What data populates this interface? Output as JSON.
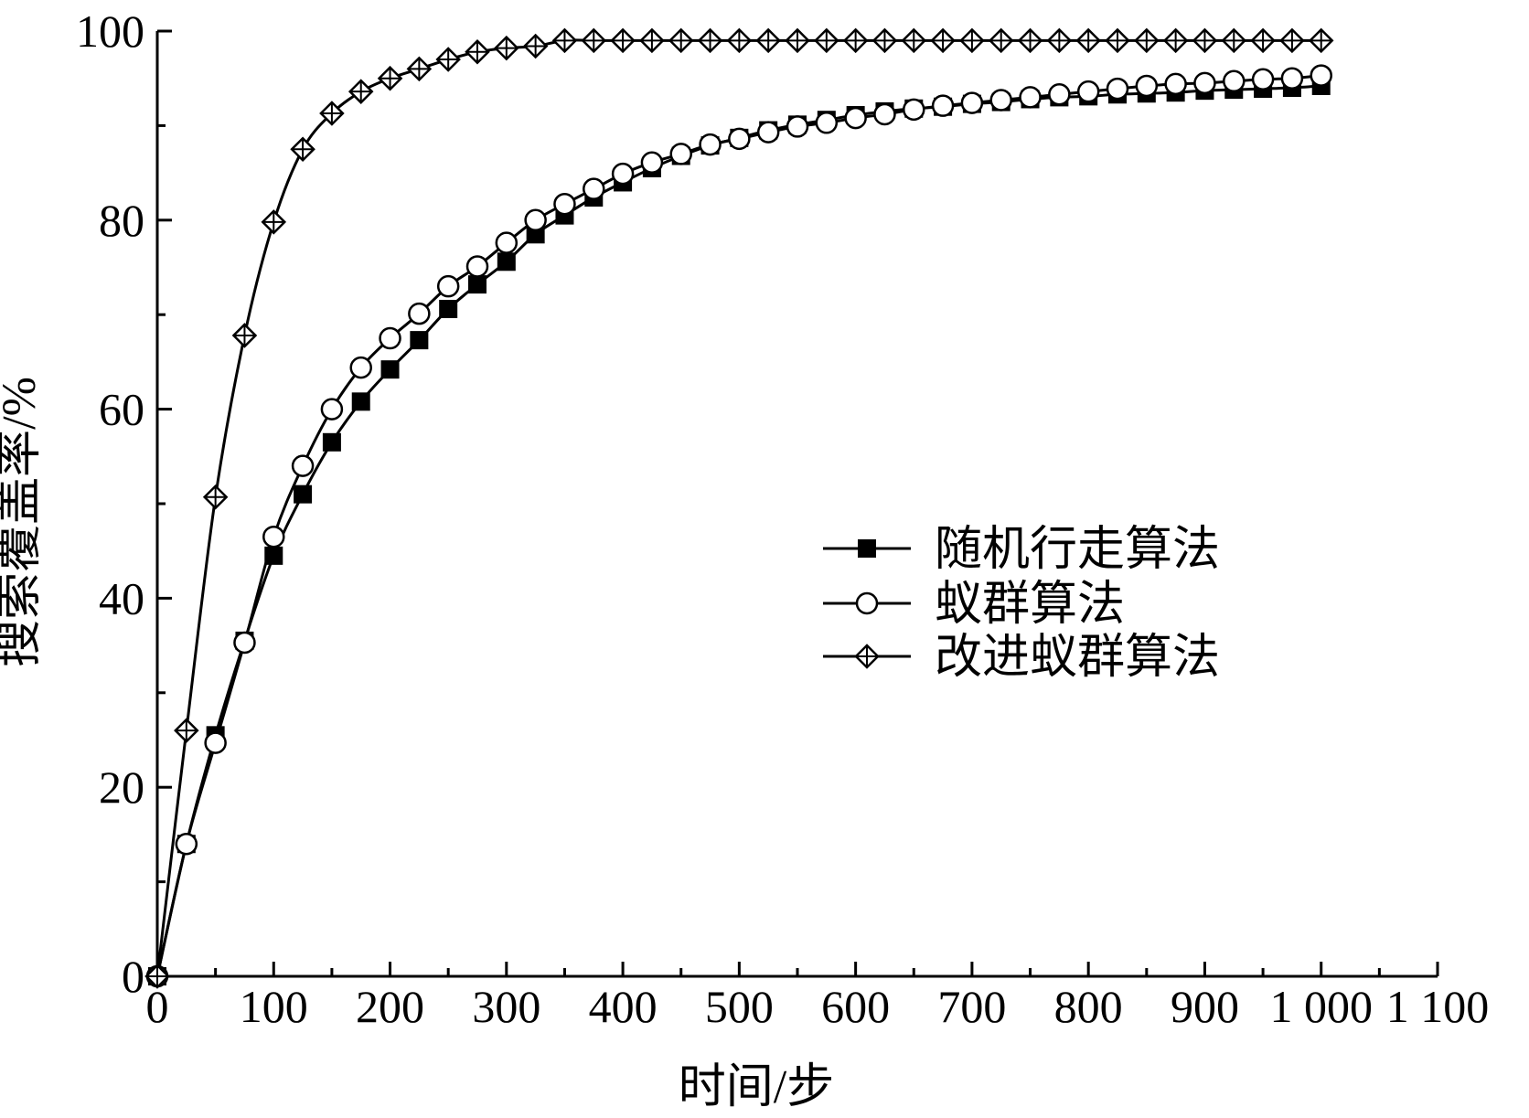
{
  "chart_data": {
    "type": "line",
    "title": "",
    "xlabel": "时间/步",
    "ylabel": "搜索覆盖率/%",
    "xlim": [
      0,
      1100
    ],
    "ylim": [
      0,
      100
    ],
    "xticks": [
      0,
      100,
      200,
      300,
      400,
      500,
      600,
      700,
      800,
      900,
      1000,
      1100
    ],
    "xtick_labels": [
      "0",
      "100",
      "200",
      "300",
      "400",
      "500",
      "600",
      "700",
      "800",
      "900",
      "1 000",
      "1 100"
    ],
    "yticks": [
      0,
      20,
      40,
      60,
      80,
      100
    ],
    "ytick_labels": [
      "0",
      "20",
      "40",
      "60",
      "80",
      "100"
    ],
    "grid": false,
    "legend_position": "center-right",
    "x": [
      0,
      25,
      50,
      75,
      100,
      125,
      150,
      175,
      200,
      225,
      250,
      275,
      300,
      325,
      350,
      375,
      400,
      425,
      450,
      475,
      500,
      525,
      550,
      575,
      600,
      625,
      650,
      675,
      700,
      725,
      750,
      775,
      800,
      825,
      850,
      875,
      900,
      925,
      950,
      975,
      1000
    ],
    "series": [
      {
        "name": "随机行走算法",
        "marker": "filled-square",
        "color": "#000000",
        "values": [
          0,
          14,
          25.5,
          35.5,
          44.5,
          51,
          56.5,
          60.8,
          64.2,
          67.3,
          70.6,
          73.2,
          75.6,
          78.5,
          80.5,
          82.4,
          84,
          85.5,
          86.8,
          87.9,
          88.7,
          89.5,
          90.1,
          90.6,
          91.1,
          91.5,
          91.8,
          92,
          92.3,
          92.5,
          92.8,
          93,
          93.1,
          93.3,
          93.4,
          93.5,
          93.7,
          93.8,
          93.9,
          94,
          94.2
        ]
      },
      {
        "name": "蚁群算法",
        "marker": "open-circle",
        "color": "#000000",
        "values": [
          0,
          14,
          24.7,
          35.3,
          46.5,
          54,
          60,
          64.4,
          67.5,
          70.1,
          73,
          75.1,
          77.6,
          80,
          81.7,
          83.3,
          84.9,
          86.1,
          87,
          88,
          88.6,
          89.3,
          89.9,
          90.3,
          90.8,
          91.2,
          91.7,
          92.1,
          92.4,
          92.7,
          93,
          93.3,
          93.6,
          93.9,
          94.2,
          94.4,
          94.5,
          94.7,
          94.9,
          95,
          95.3
        ]
      },
      {
        "name": "改进蚁群算法",
        "marker": "crossed-diamond",
        "color": "#000000",
        "values": [
          0,
          26,
          50.7,
          67.8,
          79.8,
          87.5,
          91.3,
          93.6,
          95,
          96,
          97,
          97.8,
          98.2,
          98.4,
          99,
          99,
          99,
          99,
          99,
          99,
          99,
          99,
          99,
          99,
          99,
          99,
          99,
          99,
          99,
          99,
          99,
          99,
          99,
          99,
          99,
          99,
          99,
          99,
          99,
          99,
          99
        ]
      }
    ]
  }
}
